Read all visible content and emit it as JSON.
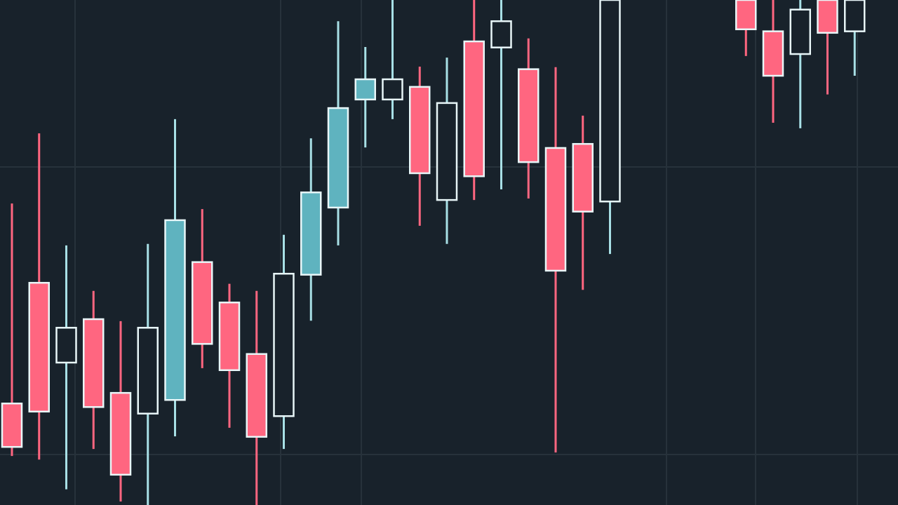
{
  "chart_data": {
    "type": "candlestick",
    "title": "",
    "xlabel": "",
    "ylabel": "",
    "ylim": [
      0,
      100
    ],
    "grid": true,
    "colors": {
      "background": "#18222b",
      "grid": "#27323b",
      "bearish_fill": "#ff6680",
      "bullish_fill": "#5fb3bf",
      "outline": "#e8f6f8",
      "bearish_wick": "#ff6680",
      "bullish_wick": "#a8e0e6"
    },
    "candles": [
      {
        "period": 0,
        "style": "pink",
        "open": 20.1,
        "close": 11.5,
        "high": 59.7,
        "low": 9.7
      },
      {
        "period": 1,
        "style": "pink",
        "open": 44.0,
        "close": 18.5,
        "high": 73.6,
        "low": 9.0
      },
      {
        "period": 2,
        "style": "hollow",
        "open": 28.2,
        "close": 35.1,
        "high": 51.4,
        "low": 3.1
      },
      {
        "period": 3,
        "style": "pink",
        "open": 36.8,
        "close": 19.4,
        "high": 42.4,
        "low": 11.1
      },
      {
        "period": 4,
        "style": "pink",
        "open": 22.2,
        "close": 6.0,
        "high": 36.4,
        "low": 0.7
      },
      {
        "period": 5,
        "style": "hollow",
        "open": 18.1,
        "close": 35.1,
        "high": 51.7,
        "low": 0.0
      },
      {
        "period": 6,
        "style": "teal",
        "open": 20.8,
        "close": 56.4,
        "high": 76.4,
        "low": 13.6
      },
      {
        "period": 7,
        "style": "pink",
        "open": 48.1,
        "close": 31.9,
        "high": 58.6,
        "low": 27.1
      },
      {
        "period": 8,
        "style": "pink",
        "open": 40.1,
        "close": 26.7,
        "high": 43.8,
        "low": 15.3
      },
      {
        "period": 9,
        "style": "pink",
        "open": 29.9,
        "close": 13.5,
        "high": 42.4,
        "low": 0.0
      },
      {
        "period": 10,
        "style": "hollow",
        "open": 17.6,
        "close": 45.8,
        "high": 53.5,
        "low": 11.1
      },
      {
        "period": 11,
        "style": "teal",
        "open": 45.6,
        "close": 61.9,
        "high": 72.6,
        "low": 36.5
      },
      {
        "period": 12,
        "style": "teal",
        "open": 58.9,
        "close": 78.6,
        "high": 95.8,
        "low": 51.4
      },
      {
        "period": 13,
        "style": "teal",
        "open": 80.3,
        "close": 84.3,
        "high": 90.7,
        "low": 70.8
      },
      {
        "period": 14,
        "style": "hollow",
        "open": 80.3,
        "close": 84.3,
        "high": 100.0,
        "low": 76.4
      },
      {
        "period": 15,
        "style": "pink",
        "open": 82.8,
        "close": 65.7,
        "high": 86.8,
        "low": 55.3
      },
      {
        "period": 16,
        "style": "hollow",
        "open": 60.4,
        "close": 79.6,
        "high": 88.6,
        "low": 51.7
      },
      {
        "period": 17,
        "style": "pink",
        "open": 91.8,
        "close": 65.1,
        "high": 100.0,
        "low": 60.4
      },
      {
        "period": 18,
        "style": "hollow",
        "open": 90.6,
        "close": 95.8,
        "high": 100.0,
        "low": 62.5
      },
      {
        "period": 19,
        "style": "pink",
        "open": 86.3,
        "close": 67.9,
        "high": 92.4,
        "low": 60.7
      },
      {
        "period": 20,
        "style": "pink",
        "open": 70.7,
        "close": 46.4,
        "high": 86.7,
        "low": 10.4
      },
      {
        "period": 21,
        "style": "pink",
        "open": 71.5,
        "close": 58.1,
        "high": 77.1,
        "low": 42.6
      },
      {
        "period": 22,
        "style": "hollow",
        "open": 60.1,
        "close": 100.0,
        "high": 100.0,
        "low": 49.7
      },
      {
        "period": 27,
        "style": "pink",
        "open": 100.0,
        "close": 94.2,
        "high": 100.0,
        "low": 88.9
      },
      {
        "period": 28,
        "style": "pink",
        "open": 93.8,
        "close": 85.0,
        "high": 100.0,
        "low": 75.7
      },
      {
        "period": 29,
        "style": "hollow",
        "open": 89.3,
        "close": 98.1,
        "high": 100.0,
        "low": 74.6
      },
      {
        "period": 30,
        "style": "pink",
        "open": 100.0,
        "close": 93.5,
        "high": 100.0,
        "low": 81.3
      },
      {
        "period": 31,
        "style": "hollow",
        "open": 93.8,
        "close": 100.0,
        "high": 100.0,
        "low": 85.0
      }
    ]
  }
}
